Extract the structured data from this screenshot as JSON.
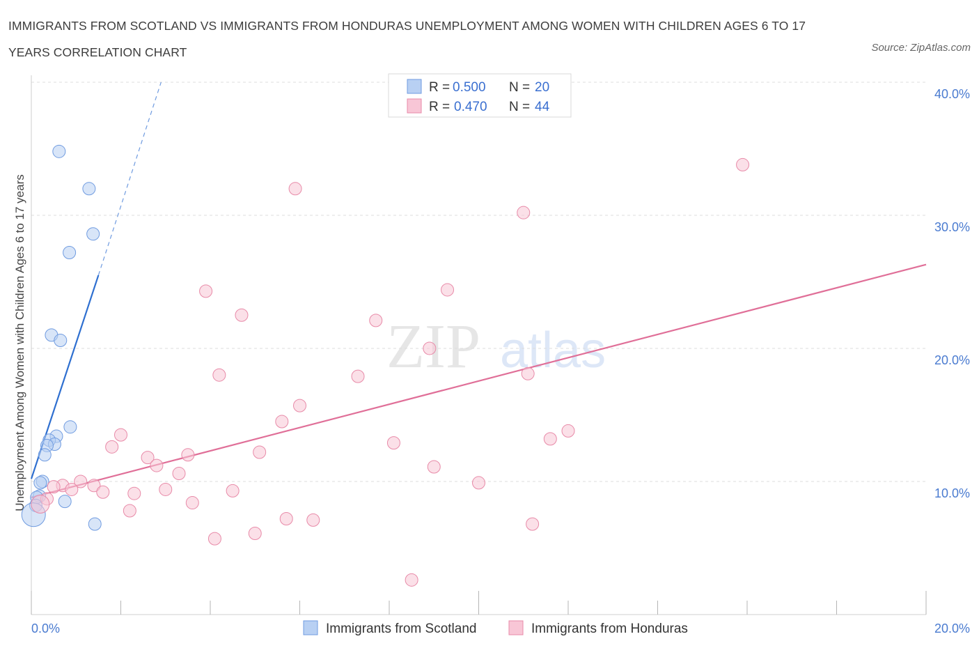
{
  "title": "IMMIGRANTS FROM SCOTLAND VS IMMIGRANTS FROM HONDURAS UNEMPLOYMENT AMONG WOMEN WITH CHILDREN AGES 6 TO 17 YEARS CORRELATION CHART",
  "source": "Source: ZipAtlas.com",
  "watermark": {
    "zip": "ZIP",
    "atlas": "atlas"
  },
  "legend": {
    "r_label": "R =",
    "n_label": "N =",
    "series": [
      {
        "name": "Immigrants from Scotland",
        "r": "0.500",
        "n": "20",
        "fill": "#b8d0f3",
        "stroke": "#6f9be0"
      },
      {
        "name": "Immigrants from Honduras",
        "r": "0.470",
        "n": "44",
        "fill": "#f8c6d6",
        "stroke": "#e88aa8"
      }
    ]
  },
  "chart_data": {
    "type": "scatter",
    "title": "IMMIGRANTS FROM SCOTLAND VS IMMIGRANTS FROM HONDURAS UNEMPLOYMENT AMONG WOMEN WITH CHILDREN AGES 6 TO 17 YEARS CORRELATION CHART",
    "xlabel": "",
    "ylabel": "Unemployment Among Women with Children Ages 6 to 17 years",
    "xlim": [
      0,
      20
    ],
    "ylim": [
      0,
      40
    ],
    "x_tick_labels": [
      "0.0%",
      "20.0%"
    ],
    "y_ticks": [
      10,
      20,
      30,
      40
    ],
    "y_tick_labels": [
      "10.0%",
      "20.0%",
      "30.0%",
      "40.0%"
    ],
    "grid": true,
    "legend_position": "top-center",
    "series": [
      {
        "name": "Immigrants from Scotland",
        "color": "#6f9be0",
        "points": [
          [
            0.62,
            34.8
          ],
          [
            1.29,
            32.0
          ],
          [
            1.38,
            28.6
          ],
          [
            0.85,
            27.2
          ],
          [
            0.45,
            21.0
          ],
          [
            0.65,
            20.6
          ],
          [
            0.87,
            14.1
          ],
          [
            0.56,
            13.4
          ],
          [
            0.4,
            13.1
          ],
          [
            0.52,
            12.8
          ],
          [
            0.35,
            12.7
          ],
          [
            0.3,
            12.0
          ],
          [
            0.25,
            10.0
          ],
          [
            0.2,
            9.9
          ],
          [
            0.18,
            8.9
          ],
          [
            0.12,
            8.8
          ],
          [
            0.75,
            8.5
          ],
          [
            0.1,
            8.2
          ],
          [
            0.05,
            7.5
          ],
          [
            1.42,
            6.8
          ]
        ],
        "trend": {
          "x0": 0.0,
          "y0": 10.2,
          "x1": 1.5,
          "y1": 25.5,
          "dashed_to_x": 2.9,
          "dashed_to_y": 40.0
        }
      },
      {
        "name": "Immigrants from Honduras",
        "color": "#e88aa8",
        "points": [
          [
            15.9,
            33.8
          ],
          [
            5.9,
            32.0
          ],
          [
            11.0,
            30.2
          ],
          [
            3.9,
            24.3
          ],
          [
            9.3,
            24.4
          ],
          [
            4.7,
            22.5
          ],
          [
            7.7,
            22.1
          ],
          [
            8.9,
            20.0
          ],
          [
            11.1,
            18.1
          ],
          [
            7.3,
            17.9
          ],
          [
            4.2,
            18.0
          ],
          [
            6.0,
            15.7
          ],
          [
            5.6,
            14.5
          ],
          [
            12.0,
            13.8
          ],
          [
            11.6,
            13.2
          ],
          [
            2.0,
            13.5
          ],
          [
            8.1,
            12.9
          ],
          [
            1.8,
            12.6
          ],
          [
            5.1,
            12.2
          ],
          [
            3.5,
            12.0
          ],
          [
            2.6,
            11.8
          ],
          [
            2.8,
            11.2
          ],
          [
            9.0,
            11.1
          ],
          [
            3.3,
            10.6
          ],
          [
            1.1,
            10.0
          ],
          [
            10.0,
            9.9
          ],
          [
            0.7,
            9.7
          ],
          [
            1.4,
            9.7
          ],
          [
            0.5,
            9.6
          ],
          [
            3.0,
            9.4
          ],
          [
            4.5,
            9.3
          ],
          [
            1.6,
            9.2
          ],
          [
            0.9,
            9.4
          ],
          [
            2.3,
            9.1
          ],
          [
            0.35,
            8.7
          ],
          [
            3.6,
            8.4
          ],
          [
            0.2,
            8.3
          ],
          [
            2.2,
            7.8
          ],
          [
            5.7,
            7.2
          ],
          [
            6.3,
            7.1
          ],
          [
            11.2,
            6.8
          ],
          [
            4.1,
            5.7
          ],
          [
            5.0,
            6.1
          ],
          [
            8.5,
            2.6
          ]
        ],
        "trend": {
          "x0": 0.0,
          "y0": 8.8,
          "x1": 20.0,
          "y1": 26.3
        }
      }
    ]
  }
}
